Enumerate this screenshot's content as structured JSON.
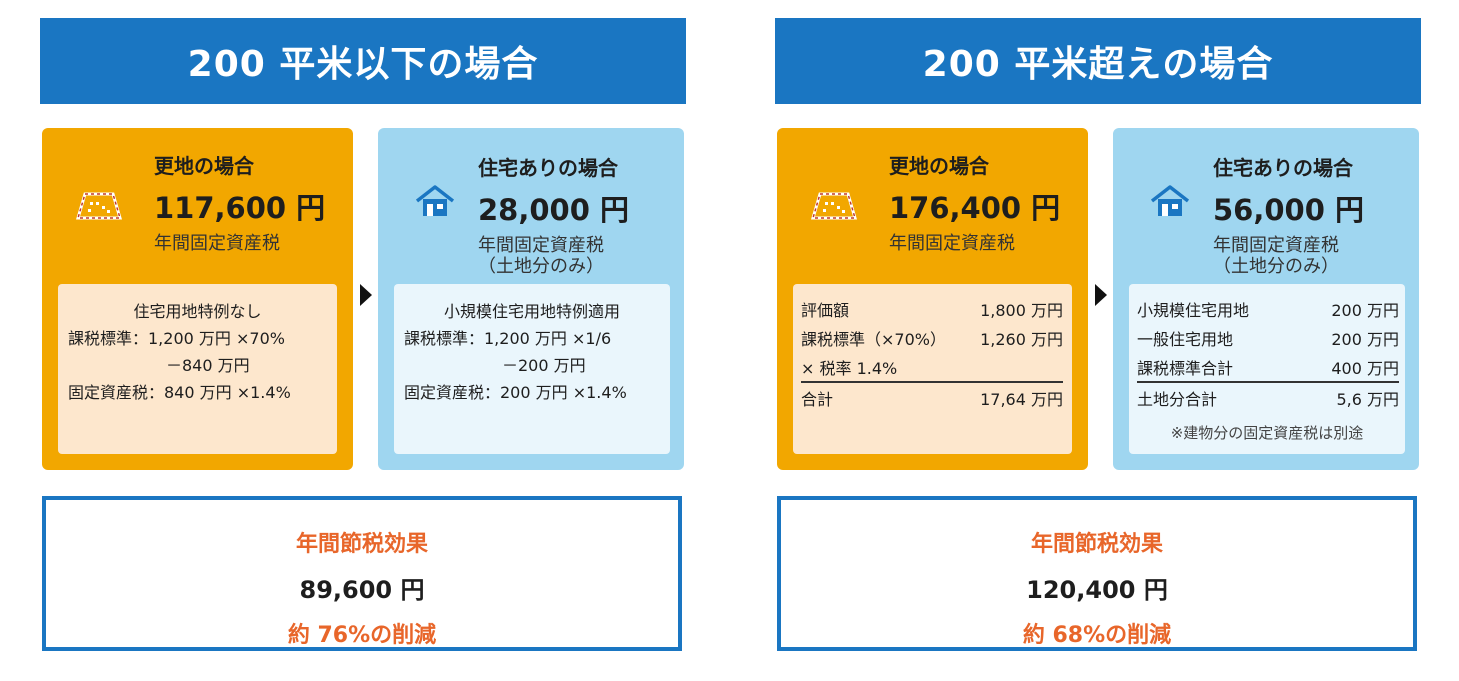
{
  "left": {
    "banner": "200 平米以下の場合",
    "vacant": {
      "title": "更地の場合",
      "amount": "117,600 円",
      "sub1": "年間固定資産税",
      "detail": {
        "title": "住宅用地特例なし",
        "line1": "課税標準：1,200 万円 ×70%",
        "line2": "－840 万円",
        "line3": "固定資産税：840 万円 ×1.4%"
      }
    },
    "house": {
      "title": "住宅ありの場合",
      "amount": "28,000 円",
      "sub1": "年間固定資産税",
      "sub2": "（土地分のみ）",
      "detail": {
        "title": "小規模住宅用地特例適用",
        "line1": "課税標準：1,200 万円 ×1/6",
        "line2": "－200 万円",
        "line3": "固定資産税：200 万円 ×1.4%"
      }
    },
    "result": {
      "label": "年間節税効果",
      "amount": "89,600 円",
      "reduce": "約 76%の削減"
    }
  },
  "right": {
    "banner": "200 平米超えの場合",
    "vacant": {
      "title": "更地の場合",
      "amount": "176,400 円",
      "sub1": "年間固定資産税",
      "rows": [
        {
          "k": "評価額",
          "v": "1,800 万円"
        },
        {
          "k": "課税標準（×70%）",
          "v": "1,260 万円"
        },
        {
          "k": "× 税率 1.4%",
          "v": ""
        }
      ],
      "total": {
        "k": "合計",
        "v": "17,64 万円"
      }
    },
    "house": {
      "title": "住宅ありの場合",
      "amount": "56,000 円",
      "sub1": "年間固定資産税",
      "sub2": "（土地分のみ）",
      "rows": [
        {
          "k": "小規模住宅用地",
          "v": "200 万円"
        },
        {
          "k": "一般住宅用地",
          "v": "200 万円"
        },
        {
          "k": "課税標準合計",
          "v": "400 万円"
        }
      ],
      "total": {
        "k": "土地分合計",
        "v": "5,6 万円"
      },
      "note": "※建物分の固定資産税は別途"
    },
    "result": {
      "label": "年間節税効果",
      "amount": "120,400 円",
      "reduce": "約 68%の削減"
    }
  },
  "colors": {
    "banner": "#1a76c2",
    "vacant_card": "#f2a700",
    "house_card": "#9fd6f0",
    "accent_text": "#e8662a"
  },
  "icons": {
    "vacant": "vacant-land-icon",
    "house": "house-icon"
  }
}
